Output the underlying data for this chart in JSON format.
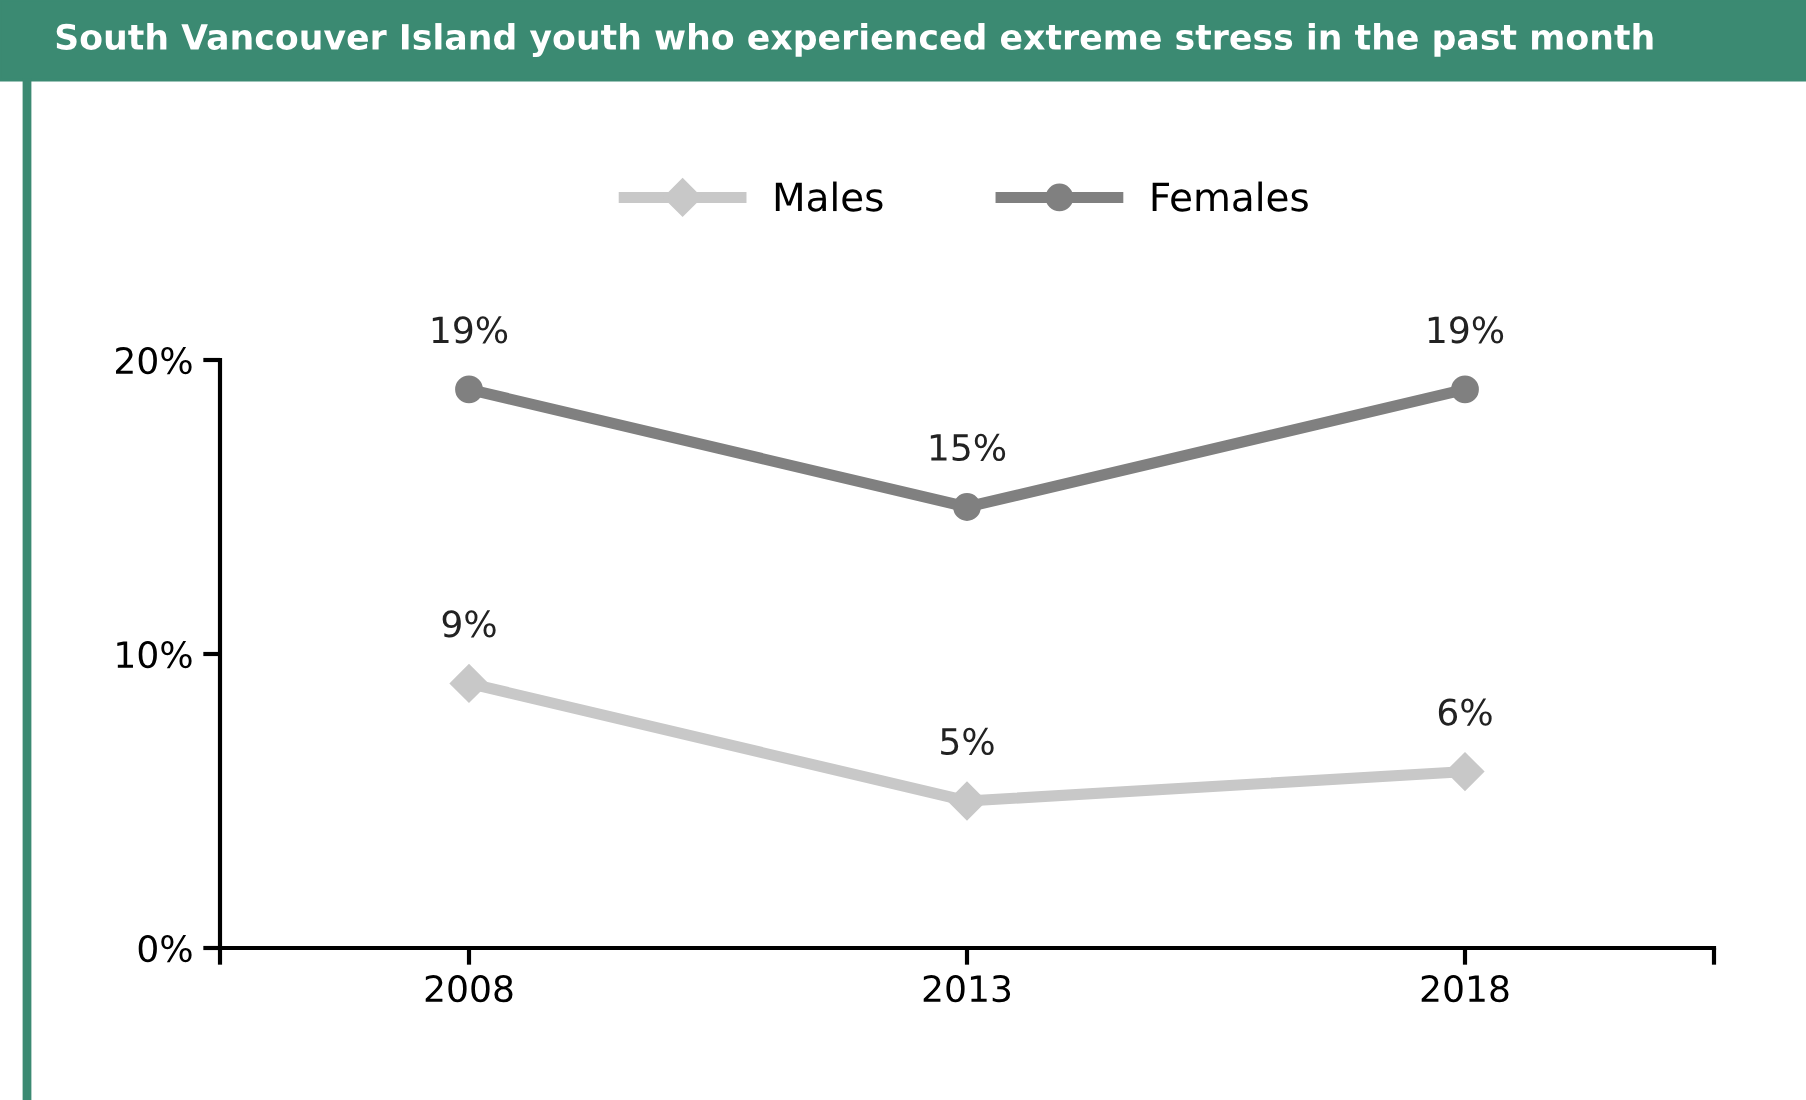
{
  "chart_data": {
    "type": "line",
    "title": "South Vancouver Island youth who experienced extreme stress in the past month",
    "categories": [
      "2008",
      "2013",
      "2018"
    ],
    "series": [
      {
        "name": "Males",
        "color": "#c8c8c8",
        "marker": "diamond",
        "values": [
          9,
          5,
          6
        ],
        "value_labels": [
          "9%",
          "5%",
          "6%"
        ]
      },
      {
        "name": "Females",
        "color": "#808080",
        "marker": "circle",
        "values": [
          19,
          15,
          19
        ],
        "value_labels": [
          "19%",
          "15%",
          "19%"
        ]
      }
    ],
    "ylim": [
      0,
      20
    ],
    "yticks": [
      {
        "value": 0,
        "label": "0%"
      },
      {
        "value": 10,
        "label": "10%"
      },
      {
        "value": 20,
        "label": "20%"
      }
    ],
    "grid": false,
    "legend": "top",
    "line_style": "solid"
  }
}
